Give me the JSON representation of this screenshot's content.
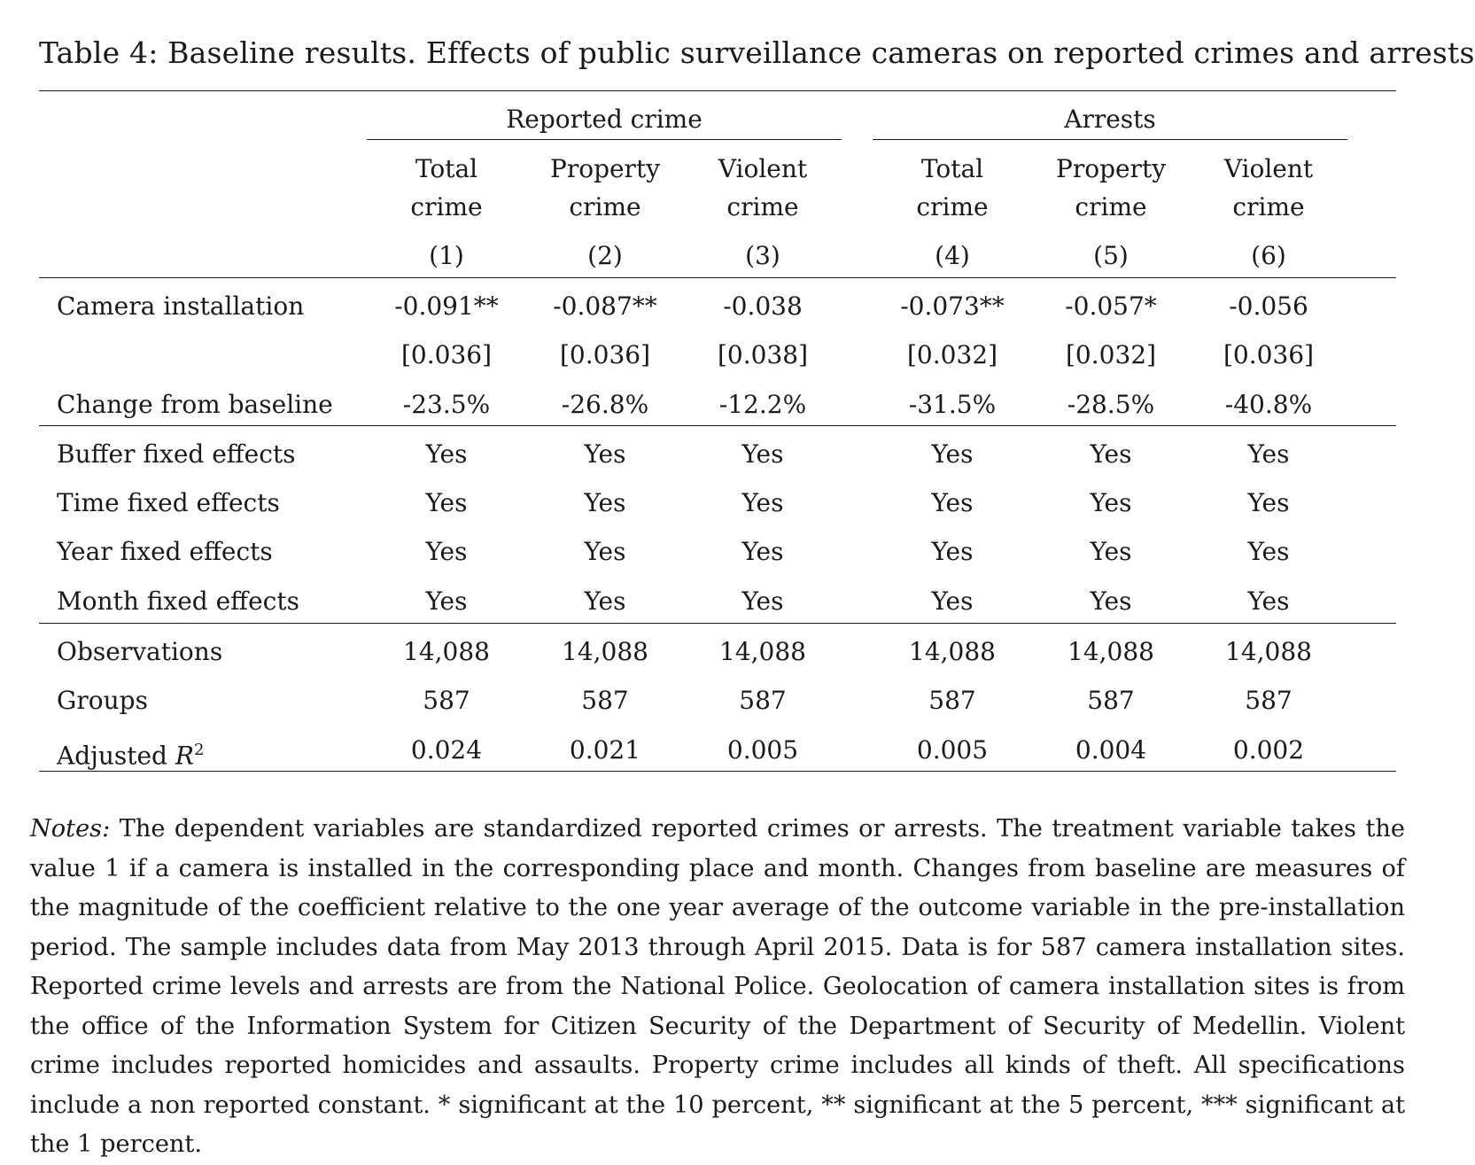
{
  "caption": "Table 4: Baseline results. Effects of public surveillance cameras on reported crimes and arrests",
  "groups": [
    {
      "label": "Reported crime"
    },
    {
      "label": "Arrests"
    }
  ],
  "columns": [
    {
      "line1": "Total",
      "line2": "crime",
      "num": "(1)"
    },
    {
      "line1": "Property",
      "line2": "crime",
      "num": "(2)"
    },
    {
      "line1": "Violent",
      "line2": "crime",
      "num": "(3)"
    },
    {
      "line1": "Total",
      "line2": "crime",
      "num": "(4)"
    },
    {
      "line1": "Property",
      "line2": "crime",
      "num": "(5)"
    },
    {
      "line1": "Violent",
      "line2": "crime",
      "num": "(6)"
    }
  ],
  "rows": [
    {
      "label": "Camera installation",
      "values": [
        "-0.091**",
        "-0.087**",
        "-0.038",
        "-0.073**",
        "-0.057*",
        "-0.056"
      ]
    },
    {
      "label": "",
      "values": [
        "[0.036]",
        "[0.036]",
        "[0.038]",
        "[0.032]",
        "[0.032]",
        "[0.036]"
      ]
    },
    {
      "label": "Change from baseline",
      "values": [
        "-23.5%",
        "-26.8%",
        "-12.2%",
        "-31.5%",
        "-28.5%",
        "-40.8%"
      ]
    },
    {
      "label": "Buffer fixed effects",
      "values": [
        "Yes",
        "Yes",
        "Yes",
        "Yes",
        "Yes",
        "Yes"
      ]
    },
    {
      "label": "Time fixed effects",
      "values": [
        "Yes",
        "Yes",
        "Yes",
        "Yes",
        "Yes",
        "Yes"
      ]
    },
    {
      "label": "Year fixed effects",
      "values": [
        "Yes",
        "Yes",
        "Yes",
        "Yes",
        "Yes",
        "Yes"
      ]
    },
    {
      "label": "Month fixed effects",
      "values": [
        "Yes",
        "Yes",
        "Yes",
        "Yes",
        "Yes",
        "Yes"
      ]
    },
    {
      "label": "Observations",
      "values": [
        "14,088",
        "14,088",
        "14,088",
        "14,088",
        "14,088",
        "14,088"
      ]
    },
    {
      "label": "Groups",
      "values": [
        "587",
        "587",
        "587",
        "587",
        "587",
        "587"
      ]
    },
    {
      "label": "Adjusted R",
      "label_sup": "2",
      "values": [
        "0.024",
        "0.021",
        "0.005",
        "0.005",
        "0.004",
        "0.002"
      ]
    }
  ],
  "notes": {
    "lead": "Notes:",
    "text": "The dependent variables are standardized reported crimes or arrests. The treatment variable takes the value 1 if a camera is installed in the corresponding place and month. Changes from baseline are measures of the magnitude of the coefficient relative to the one year average of the outcome variable in the pre-installation period. The sample includes data from May 2013 through April 2015. Data is for 587 camera installation sites. Reported crime levels and arrests are from the National Police. Geolocation of camera installation sites is from the office of the Information System for Citizen Security of the Department of Security of Medellin. Violent crime includes reported homicides and assaults. Property crime includes all kinds of theft. All specifications include a non reported constant. * significant at the 10 percent, ** significant at the 5 percent, *** significant at the 1 percent."
  }
}
